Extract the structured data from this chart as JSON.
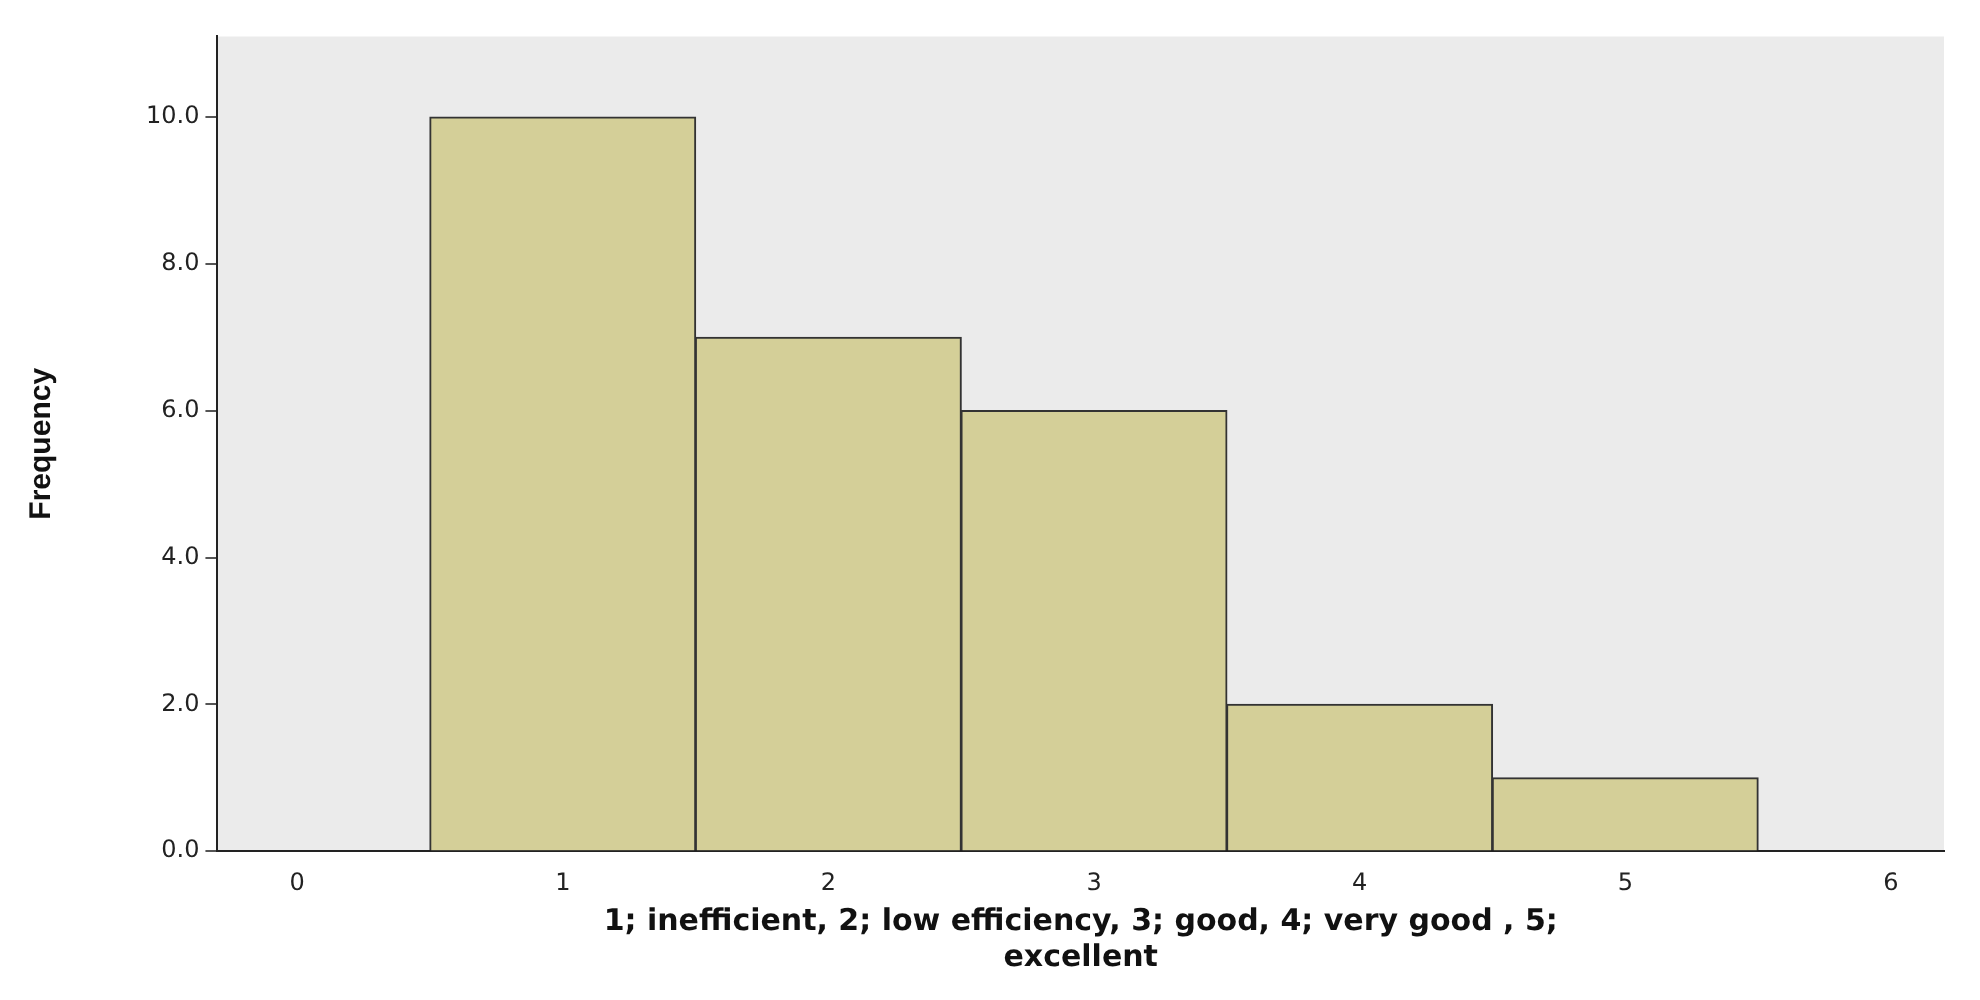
{
  "chart_data": {
    "type": "histogram",
    "xlabel": "1; inefficient, 2; low efficiency, 3; good, 4; very good , 5; excellent",
    "ylabel": "Frequency",
    "bins": [
      0.5,
      1.5,
      2.5,
      3.5,
      4.5,
      5.5
    ],
    "values": [
      10,
      7,
      6,
      2,
      1
    ],
    "color": "#d4cf98",
    "xlim": [
      -0.3,
      6.2
    ],
    "xticks": [
      0,
      1,
      2,
      3,
      4,
      5,
      6
    ],
    "ylim": [
      0,
      11.1
    ],
    "yticks": [
      {
        "value": 0,
        "label": "0.0"
      },
      {
        "value": 2,
        "label": "2.0"
      },
      {
        "value": 4,
        "label": "4.0"
      },
      {
        "value": 6,
        "label": "6.0"
      },
      {
        "value": 8,
        "label": "8.0"
      },
      {
        "value": 10,
        "label": "10.0"
      }
    ],
    "grid": false,
    "legend": false
  }
}
